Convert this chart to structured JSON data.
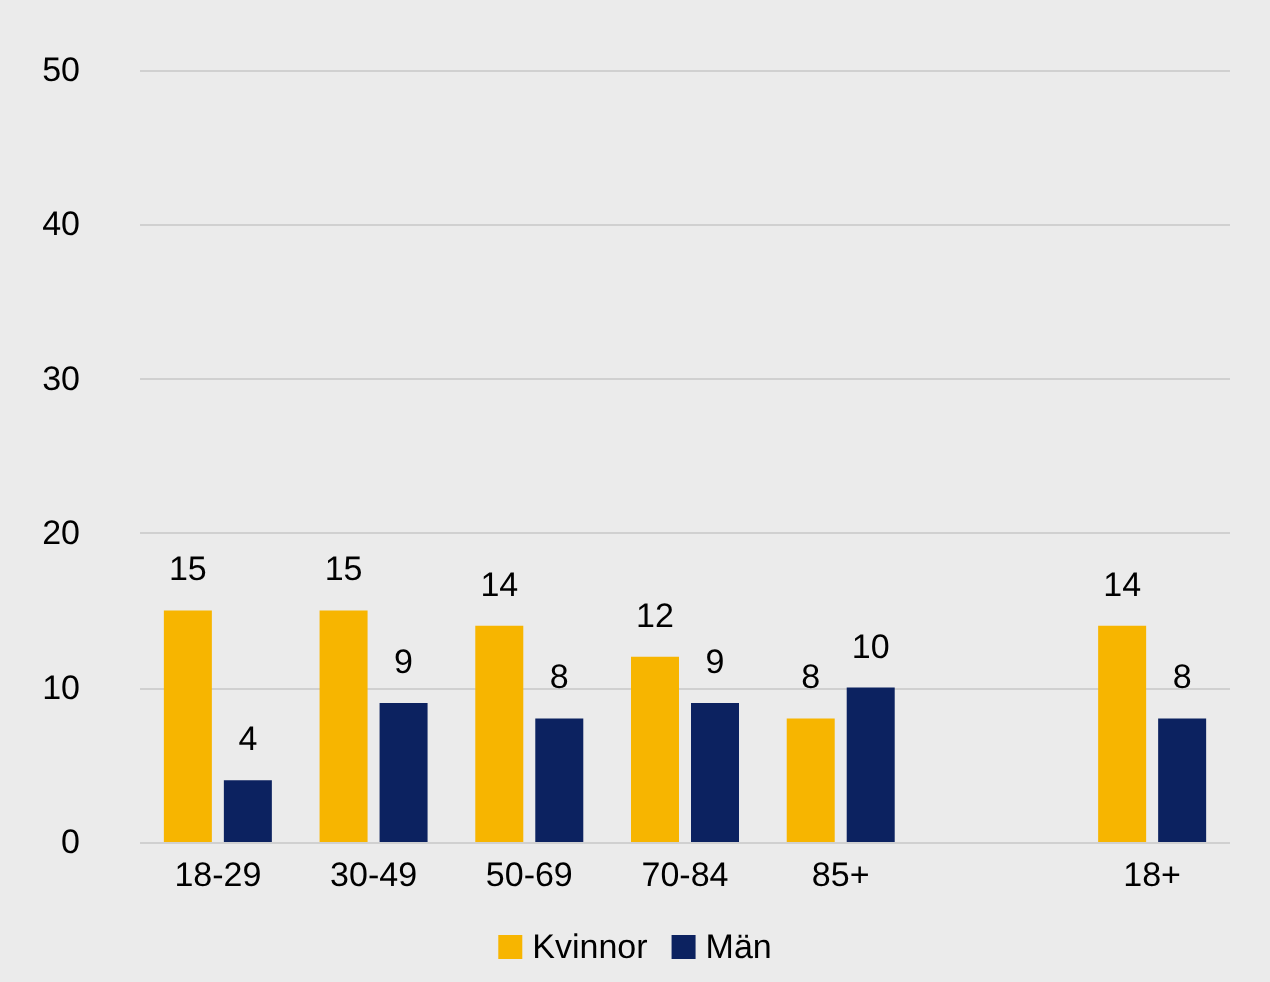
{
  "chart_data": {
    "type": "bar",
    "categories": [
      "18-29",
      "30-49",
      "50-69",
      "70-84",
      "85+",
      null,
      "18+"
    ],
    "series": [
      {
        "name": "Kvinnor",
        "color": "#f7b500",
        "values": [
          15,
          15,
          14,
          12,
          8,
          null,
          14
        ]
      },
      {
        "name": "Män",
        "color": "#0c2260",
        "values": [
          4,
          9,
          8,
          9,
          10,
          null,
          8
        ]
      }
    ],
    "ylim": [
      0,
      50
    ],
    "yticks": [
      0,
      10,
      20,
      30,
      40,
      50
    ],
    "grid": "y",
    "legend": "bottom",
    "data_labels": true
  }
}
